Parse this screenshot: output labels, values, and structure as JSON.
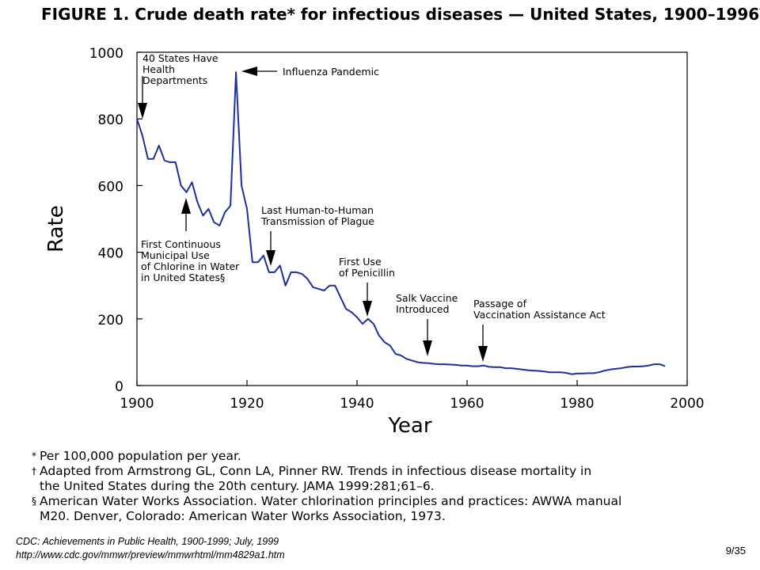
{
  "figure_title": "FIGURE 1. Crude death rate* for infectious diseases — United States, 1900–1996",
  "figure_title_mark": "†",
  "chart_data": {
    "type": "line",
    "xlabel": "Year",
    "ylabel": "Rate",
    "xlim": [
      1900,
      2000
    ],
    "ylim": [
      0,
      1000
    ],
    "x_ticks": [
      1900,
      1920,
      1940,
      1960,
      1980,
      2000
    ],
    "y_ticks": [
      0,
      200,
      400,
      600,
      800,
      1000
    ],
    "grid": false,
    "color": "#1f2fa0",
    "series": [
      {
        "x": [
          1900,
          1901,
          1902,
          1903,
          1904,
          1905,
          1906,
          1907,
          1908,
          1909,
          1910,
          1911,
          1912,
          1913,
          1914,
          1915,
          1916,
          1917,
          1918,
          1919,
          1920,
          1921,
          1922,
          1923,
          1924,
          1925,
          1926,
          1927,
          1928,
          1929,
          1930,
          1931,
          1932,
          1933,
          1934,
          1935,
          1936,
          1937,
          1938,
          1939,
          1940,
          1941,
          1942,
          1943,
          1944,
          1945,
          1946,
          1947,
          1948,
          1949,
          1950,
          1951,
          1952,
          1953,
          1954,
          1955,
          1956,
          1957,
          1958,
          1959,
          1960,
          1961,
          1962,
          1963,
          1964,
          1965,
          1966,
          1967,
          1968,
          1969,
          1970,
          1971,
          1972,
          1973,
          1974,
          1975,
          1976,
          1977,
          1978,
          1979,
          1980,
          1981,
          1982,
          1983,
          1984,
          1985,
          1986,
          1987,
          1988,
          1989,
          1990,
          1991,
          1992,
          1993,
          1994,
          1995,
          1996
        ],
        "y": [
          800,
          750,
          680,
          680,
          720,
          675,
          670,
          670,
          600,
          580,
          610,
          550,
          510,
          530,
          490,
          480,
          520,
          540,
          940,
          600,
          530,
          370,
          370,
          390,
          340,
          340,
          360,
          300,
          340,
          340,
          335,
          320,
          295,
          290,
          285,
          300,
          300,
          265,
          230,
          220,
          205,
          185,
          200,
          185,
          150,
          130,
          120,
          95,
          90,
          80,
          75,
          70,
          68,
          67,
          65,
          64,
          64,
          63,
          62,
          60,
          60,
          58,
          58,
          60,
          56,
          55,
          55,
          52,
          52,
          50,
          48,
          46,
          45,
          44,
          42,
          40,
          40,
          40,
          38,
          34,
          36,
          36,
          37,
          37,
          40,
          45,
          48,
          50,
          52,
          55,
          57,
          57,
          58,
          60,
          64,
          64,
          58
        ]
      }
    ],
    "annotations": [
      {
        "text": "40 States Have\nHealth\nDepartments",
        "year": 1901
      },
      {
        "text": "Influenza Pandemic",
        "year": 1918
      },
      {
        "text": "First Continuous\nMunicipal Use\nof Chlorine in Water\nin United States§",
        "year": 1908
      },
      {
        "text": "Last Human-to-Human\nTransmission of Plague",
        "year": 1924
      },
      {
        "text": "First Use\nof Penicillin",
        "year": 1942
      },
      {
        "text": "Salk Vaccine\nIntroduced",
        "year": 1955
      },
      {
        "text": "Passage of\nVaccination Assistance Act",
        "year": 1962
      }
    ]
  },
  "footnotes": [
    {
      "symbol": "*",
      "text": "Per 100,000 population per year."
    },
    {
      "symbol": "†",
      "text": "Adapted from Armstrong GL, Conn LA, Pinner RW. Trends in infectious disease mortality in\nthe United States during the 20th century. JAMA 1999:281;61–6."
    },
    {
      "symbol": "§",
      "text": "American Water Works Association. Water chlorination principles and practices: AWWA manual\nM20. Denver, Colorado: American Water Works Association, 1973."
    }
  ],
  "source_lines": [
    "CDC: Achievements in Public Health, 1900-1999; July, 1999",
    "http://www.cdc.gov/mmwr/preview/mmwrhtml/mm4829a1.htm"
  ],
  "page_number": "9/35"
}
